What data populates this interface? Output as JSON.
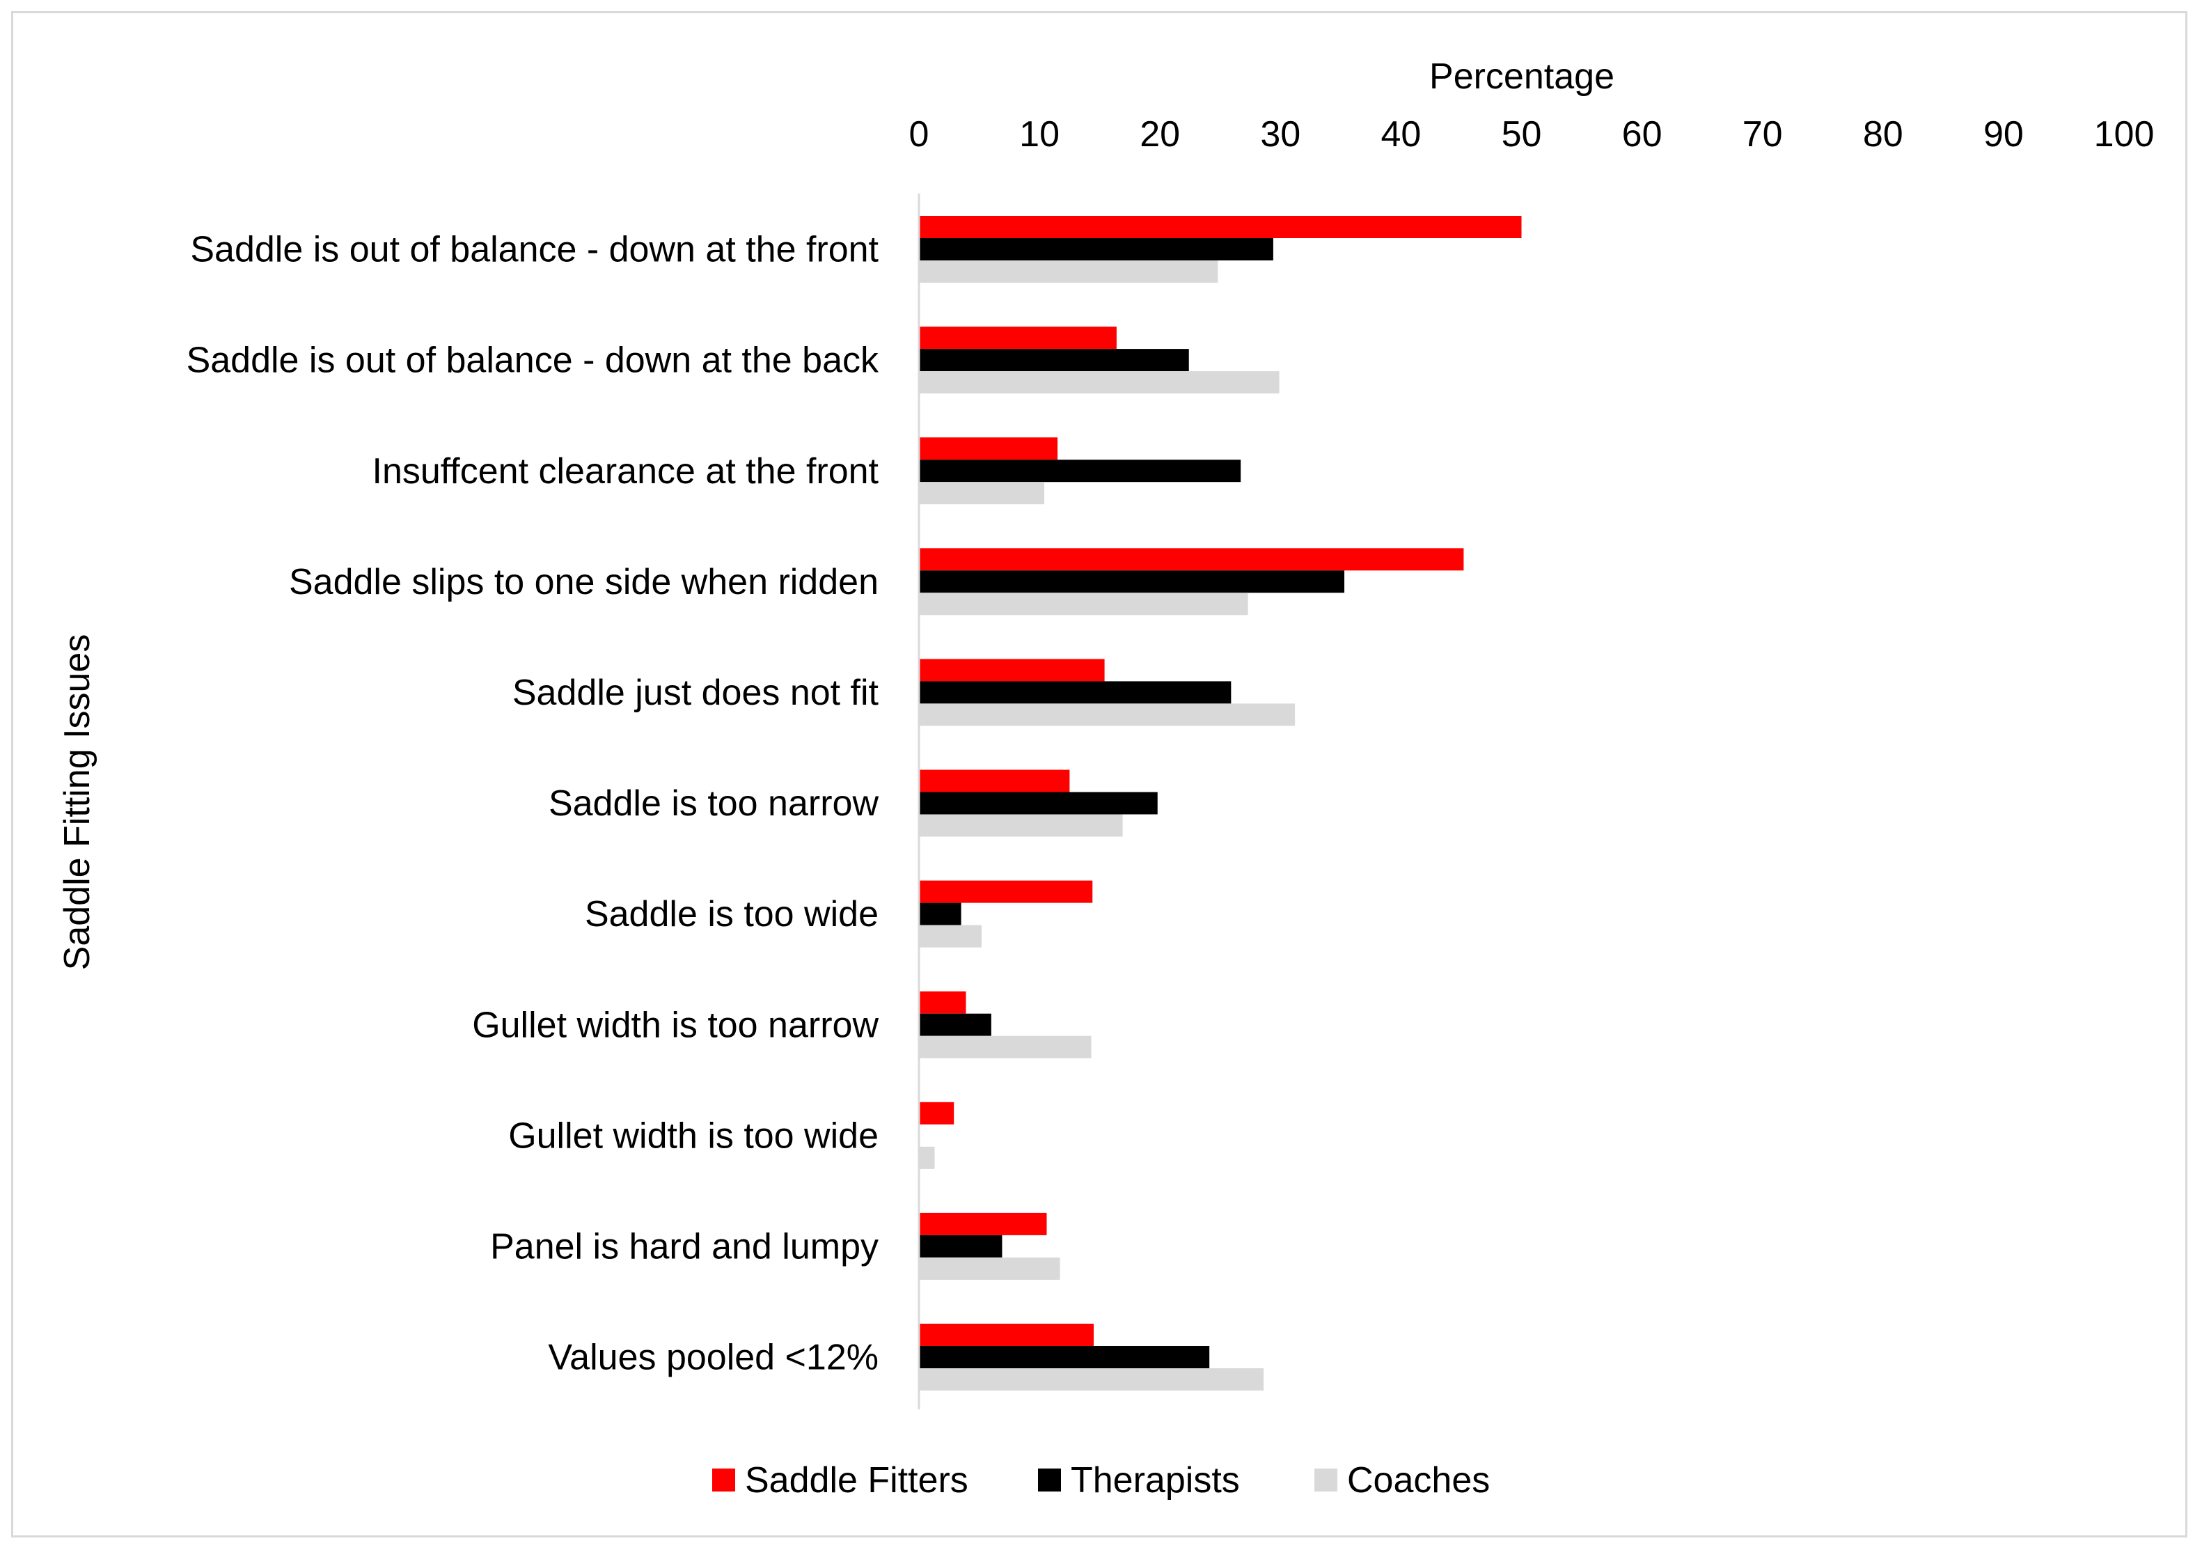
{
  "chart_data": {
    "type": "bar",
    "orientation": "horizontal",
    "xlabel": "Percentage",
    "ylabel": "Saddle Fitting Issues",
    "xlim": [
      0,
      100
    ],
    "xticks": [
      0,
      10,
      20,
      30,
      40,
      50,
      60,
      70,
      80,
      90,
      100
    ],
    "x_axis_position": "top",
    "grid": false,
    "legend_position": "bottom",
    "categories": [
      "Saddle is out of balance - down at the front",
      "Saddle is out of balance - down at the back",
      "Insuffcent clearance at the front",
      "Saddle slips to one side when ridden",
      "Saddle just does not fit",
      "Saddle is too narrow",
      "Saddle is too wide",
      "Gullet width is too narrow",
      "Gullet width is too wide",
      "Panel is hard and lumpy",
      "Values pooled <12%"
    ],
    "series": [
      {
        "name": "Saddle Fitters",
        "color": "#ff0000",
        "values": [
          50,
          16.4,
          11.5,
          45.2,
          15.4,
          12.5,
          14.4,
          3.9,
          2.9,
          10.6,
          14.5
        ]
      },
      {
        "name": "Therapists",
        "color": "#000000",
        "values": [
          29.4,
          22.4,
          26.7,
          35.3,
          25.9,
          19.8,
          3.5,
          6,
          0,
          6.9,
          24.1
        ]
      },
      {
        "name": "Coaches",
        "color": "#d9d9d9",
        "values": [
          24.8,
          29.9,
          10.4,
          27.3,
          31.2,
          16.9,
          5.2,
          14.3,
          1.3,
          11.7,
          28.6
        ]
      }
    ]
  }
}
